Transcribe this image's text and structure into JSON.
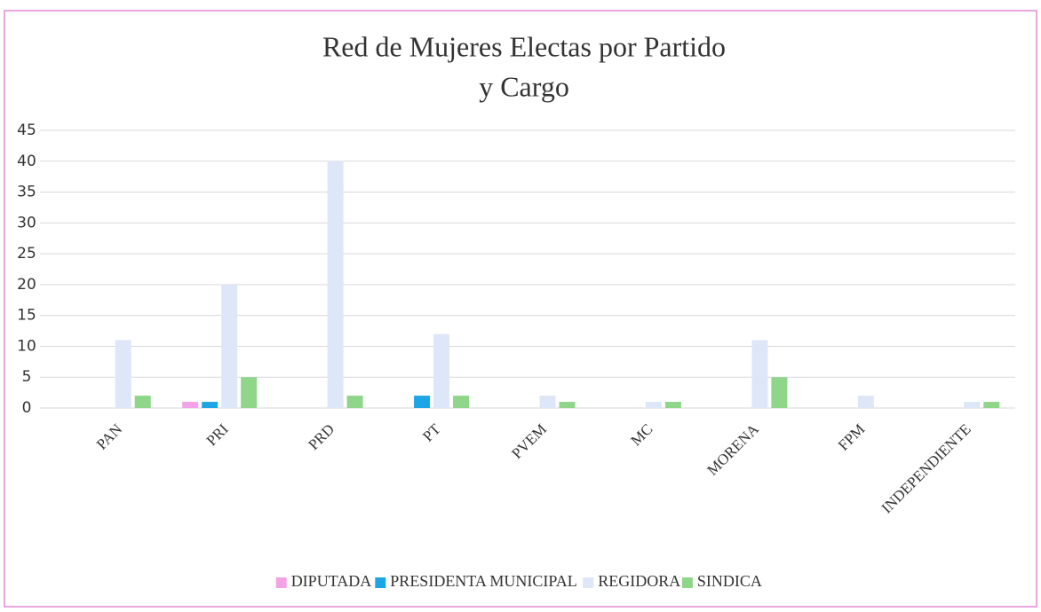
{
  "chart_data": {
    "type": "bar",
    "title": [
      "Red de Mujeres Electas por Partido",
      "y Cargo"
    ],
    "categories": [
      "PAN",
      "PRI",
      "PRD",
      "PT",
      "PVEM",
      "MC",
      "MORENA",
      "FPM",
      "INDEPENDIENTE"
    ],
    "series": [
      {
        "name": "DIPUTADA",
        "color": "#f4a2e6",
        "values": [
          0,
          1,
          0,
          0,
          0,
          0,
          0,
          0,
          0
        ]
      },
      {
        "name": "PRESIDENTA MUNICIPAL",
        "color": "#1ea5e6",
        "values": [
          0,
          1,
          0,
          2,
          0,
          0,
          0,
          0,
          0
        ]
      },
      {
        "name": "REGIDORA",
        "color": "#dde7f7",
        "values": [
          11,
          20,
          40,
          12,
          2,
          1,
          11,
          2,
          1
        ]
      },
      {
        "name": "SINDICA",
        "color": "#8fd68a",
        "values": [
          2,
          5,
          2,
          2,
          1,
          1,
          5,
          0,
          1
        ]
      }
    ],
    "ylim": [
      0,
      45
    ],
    "yticks": [
      0,
      5,
      10,
      15,
      20,
      25,
      30,
      35,
      40,
      45
    ],
    "grid": true,
    "legend": "bottom"
  }
}
